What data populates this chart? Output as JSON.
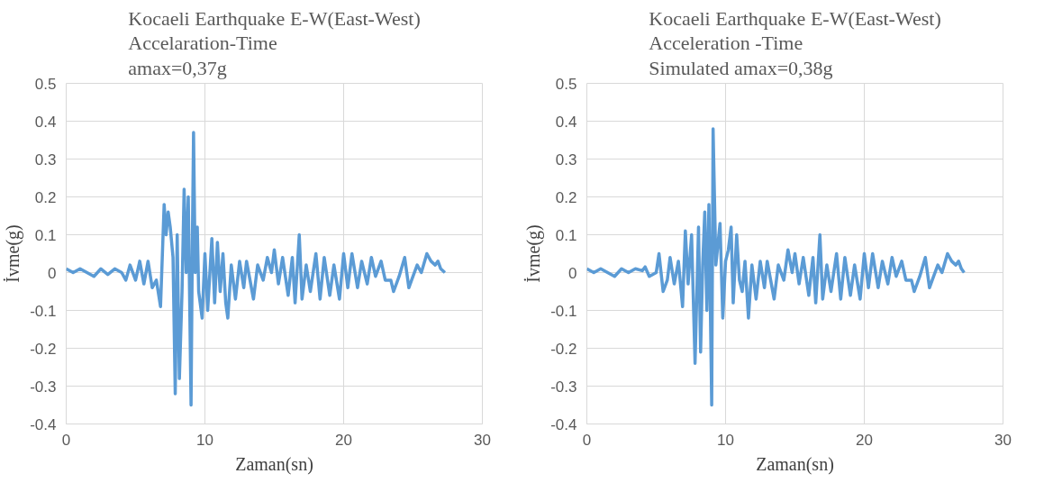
{
  "chart_data": [
    {
      "type": "line",
      "title": "Kocaeli Earthquake E-W(East-West)\nAccelaration-Time\namax=0,37g",
      "xlabel": "Zaman(sn)",
      "ylabel": "İvme(g)",
      "xlim": [
        0,
        30
      ],
      "ylim": [
        -0.4,
        0.5
      ],
      "xticks": [
        0,
        10,
        20,
        30
      ],
      "yticks": [
        -0.4,
        -0.3,
        -0.2,
        -0.1,
        0,
        0.1,
        0.2,
        0.3,
        0.4,
        0.5
      ],
      "grid": true,
      "series": [
        {
          "color": "#5b9bd5",
          "x": [
            0,
            0.5,
            1,
            1.5,
            2,
            2.5,
            3,
            3.5,
            4,
            4.3,
            4.6,
            5,
            5.3,
            5.6,
            5.9,
            6.2,
            6.5,
            6.8,
            7.06,
            7.2,
            7.35,
            7.5,
            7.7,
            7.86,
            8.0,
            8.16,
            8.35,
            8.5,
            8.65,
            8.8,
            9.0,
            9.1,
            9.18,
            9.3,
            9.45,
            9.55,
            9.8,
            10.0,
            10.2,
            10.5,
            10.7,
            10.9,
            11.1,
            11.3,
            11.5,
            11.65,
            11.9,
            12.2,
            12.5,
            12.8,
            13.0,
            13.5,
            13.8,
            14.2,
            14.5,
            14.8,
            15.0,
            15.3,
            15.6,
            16.0,
            16.3,
            16.5,
            16.8,
            17.0,
            17.3,
            17.6,
            18.0,
            18.3,
            18.6,
            19.0,
            19.3,
            19.7,
            20.0,
            20.3,
            20.6,
            21.0,
            21.3,
            21.7,
            22.0,
            22.3,
            22.7,
            23.0,
            23.4,
            23.6,
            24.0,
            24.4,
            24.7,
            25.0,
            25.3,
            25.6,
            26.0,
            26.3,
            26.6,
            26.8,
            27.0,
            27.3
          ],
          "values": [
            0.01,
            0,
            0.01,
            0,
            -0.01,
            0.01,
            -0.005,
            0.01,
            0,
            -0.02,
            0.02,
            -0.02,
            0.03,
            -0.03,
            0.03,
            -0.04,
            -0.02,
            -0.09,
            0.18,
            0.1,
            0.16,
            0.12,
            0.04,
            -0.32,
            0.1,
            -0.28,
            -0.05,
            0.22,
            0.0,
            0.2,
            -0.35,
            0.1,
            0.37,
            0.0,
            0.12,
            -0.05,
            -0.12,
            0.05,
            -0.1,
            0.09,
            -0.08,
            0.08,
            -0.05,
            0.05,
            -0.08,
            -0.12,
            0.02,
            -0.07,
            0.03,
            -0.04,
            0.03,
            -0.07,
            0.02,
            -0.02,
            0.04,
            0.0,
            0.06,
            -0.03,
            0.04,
            -0.06,
            0.04,
            -0.08,
            0.1,
            -0.07,
            0.02,
            -0.05,
            0.05,
            -0.07,
            0.04,
            -0.06,
            0.02,
            -0.07,
            0.05,
            -0.04,
            0.05,
            -0.04,
            0.03,
            -0.03,
            0.04,
            -0.01,
            0.03,
            -0.02,
            -0.02,
            -0.05,
            -0.01,
            0.04,
            -0.04,
            -0.01,
            0.02,
            0.0,
            0.05,
            0.03,
            0.02,
            0.03,
            0.01,
            0.0
          ]
        }
      ]
    },
    {
      "type": "line",
      "title": "Kocaeli Earthquake E-W(East-West)\nAcceleration -Time\nSimulated amax=0,38g",
      "xlabel": "Zaman(sn)",
      "ylabel": "İvme(g)",
      "xlim": [
        0,
        30
      ],
      "ylim": [
        -0.4,
        0.5
      ],
      "xticks": [
        0,
        10,
        20,
        30
      ],
      "yticks": [
        -0.4,
        -0.3,
        -0.2,
        -0.1,
        0,
        0.1,
        0.2,
        0.3,
        0.4,
        0.5
      ],
      "grid": true,
      "series": [
        {
          "color": "#5b9bd5",
          "x": [
            0,
            0.5,
            1,
            1.5,
            2,
            2.5,
            3,
            3.5,
            4,
            4.2,
            4.5,
            5,
            5.2,
            5.5,
            5.8,
            6.0,
            6.3,
            6.6,
            6.9,
            7.1,
            7.3,
            7.55,
            7.8,
            8.05,
            8.2,
            8.35,
            8.5,
            8.65,
            8.8,
            9.0,
            9.1,
            9.3,
            9.6,
            9.8,
            10.0,
            10.2,
            10.4,
            10.55,
            10.8,
            11.0,
            11.2,
            11.4,
            11.65,
            11.9,
            12.2,
            12.5,
            12.8,
            13.0,
            13.5,
            13.8,
            14.2,
            14.5,
            14.8,
            15.0,
            15.3,
            15.6,
            16.0,
            16.3,
            16.5,
            16.8,
            17.0,
            17.3,
            17.6,
            18.0,
            18.3,
            18.6,
            19.0,
            19.3,
            19.7,
            20.0,
            20.3,
            20.6,
            21.0,
            21.3,
            21.7,
            22.0,
            22.3,
            22.7,
            23.0,
            23.4,
            23.6,
            24.0,
            24.4,
            24.7,
            25.0,
            25.3,
            25.6,
            26.0,
            26.3,
            26.6,
            26.8,
            27.0,
            27.2
          ],
          "values": [
            0.01,
            0,
            0.01,
            0,
            -0.01,
            0.01,
            0,
            0.01,
            0.005,
            0.015,
            -0.01,
            0,
            0.05,
            -0.05,
            -0.02,
            0.04,
            -0.03,
            0.03,
            -0.09,
            0.11,
            -0.03,
            0.1,
            -0.24,
            0.12,
            -0.21,
            0.02,
            0.16,
            -0.1,
            0.18,
            -0.35,
            0.38,
            0.02,
            0.13,
            -0.12,
            0.03,
            0.06,
            0.12,
            -0.08,
            0.1,
            -0.02,
            -0.05,
            0.03,
            -0.12,
            0.02,
            -0.07,
            0.03,
            -0.04,
            0.03,
            -0.07,
            0.02,
            -0.02,
            0.06,
            0.0,
            0.05,
            -0.03,
            0.04,
            -0.06,
            0.04,
            -0.08,
            0.1,
            -0.07,
            0.02,
            -0.05,
            0.05,
            -0.07,
            0.04,
            -0.06,
            0.02,
            -0.07,
            0.05,
            -0.04,
            0.05,
            -0.04,
            0.03,
            -0.03,
            0.04,
            -0.01,
            0.03,
            -0.02,
            -0.02,
            -0.05,
            -0.01,
            0.04,
            -0.04,
            -0.01,
            0.02,
            0.0,
            0.05,
            0.03,
            0.02,
            0.03,
            0.01,
            0.0
          ]
        }
      ]
    }
  ]
}
